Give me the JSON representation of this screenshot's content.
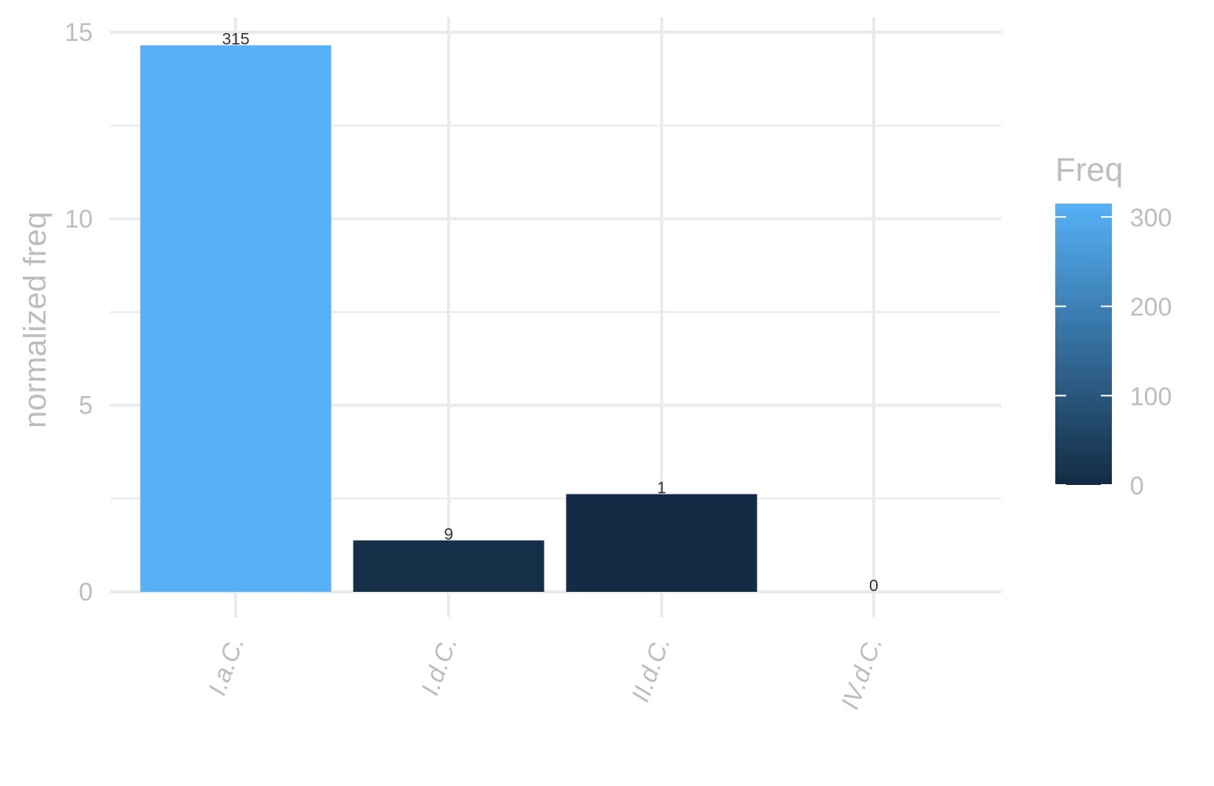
{
  "chart_data": {
    "type": "bar",
    "title": "",
    "xlabel": "",
    "ylabel": "normalized freq",
    "categories": [
      "I.a.C.",
      "I.d.C.",
      "II.d.C.",
      "IV.d.C."
    ],
    "values": [
      14.65,
      1.38,
      2.62,
      0
    ],
    "freq": [
      315,
      9,
      1,
      0
    ],
    "data_labels": [
      "315",
      "9",
      "1",
      "0"
    ],
    "ylim": [
      0,
      15
    ],
    "yticks": [
      0,
      5,
      10,
      15
    ],
    "grid": true,
    "legend": {
      "title": "Freq",
      "position": "right",
      "type": "colorbar",
      "range": [
        0,
        315
      ],
      "ticks": [
        0,
        100,
        200,
        300
      ],
      "color_low": "#132B43",
      "color_high": "#56B1F7"
    }
  }
}
